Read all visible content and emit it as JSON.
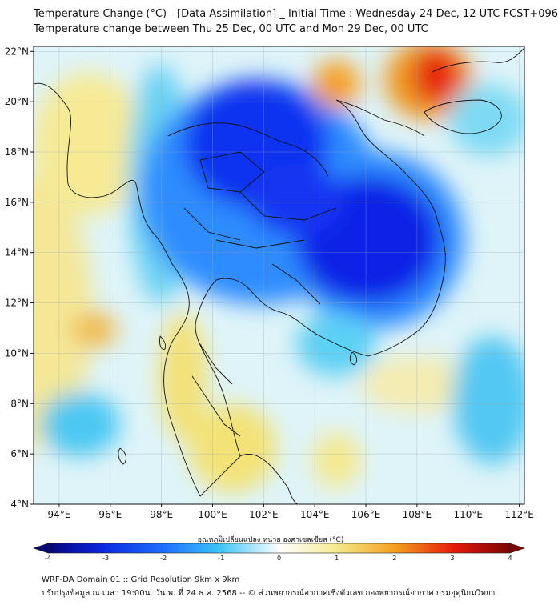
{
  "title": {
    "line1": "Temperature Change (°C) - [Data Assimilation] _ Initial Time : Wednesday 24 Dec, 12 UTC FCST+096",
    "line2": "Temperature change between Thu 25 Dec, 00 UTC and Mon 29 Dec, 00 UTC"
  },
  "map": {
    "lat_ticks": [
      "22°N",
      "20°N",
      "18°N",
      "16°N",
      "14°N",
      "12°N",
      "10°N",
      "8°N",
      "6°N",
      "4°N"
    ],
    "lat_values": [
      22,
      20,
      18,
      16,
      14,
      12,
      10,
      8,
      6,
      4
    ],
    "lon_ticks": [
      "94°E",
      "96°E",
      "98°E",
      "100°E",
      "102°E",
      "104°E",
      "106°E",
      "108°E",
      "110°E",
      "112°E"
    ],
    "lon_values": [
      94,
      96,
      98,
      100,
      102,
      104,
      106,
      108,
      110,
      112
    ],
    "lon_range": [
      93,
      112.2
    ],
    "lat_range": [
      4,
      22.2
    ]
  },
  "colorbar": {
    "label": "อุณหภูมิเปลี่ยนแปลง หน่วย องศาเซลเซียส (°C)",
    "ticks": [
      "-4",
      "-3",
      "-2",
      "-1",
      "0",
      "1",
      "2",
      "3",
      "4"
    ],
    "tick_values": [
      -4,
      -3,
      -2,
      -1,
      0,
      1,
      2,
      3,
      4
    ],
    "range": [
      -4,
      4
    ]
  },
  "footer": {
    "line1": "WRF-DA Domain 01 :: Grid Resolution 9km x 9km",
    "line2": "ปรับปรุงข้อมูล ณ เวลา 19:00น. วัน พ. ที่ 24 ธ.ค. 2568 -- © ส่วนพยากรณ์อากาศเชิงตัวเลข กองพยากรณ์อากาศ กรมอุตุนิยมวิทยา"
  },
  "colors": {
    "strong_cold": "#0a1ee6",
    "cold": "#1f6fff",
    "cool": "#3cc3f5",
    "neutral": "#e9f8fb",
    "warm": "#f5e888",
    "hot": "#f5a020",
    "very_hot": "#e81b0a"
  }
}
